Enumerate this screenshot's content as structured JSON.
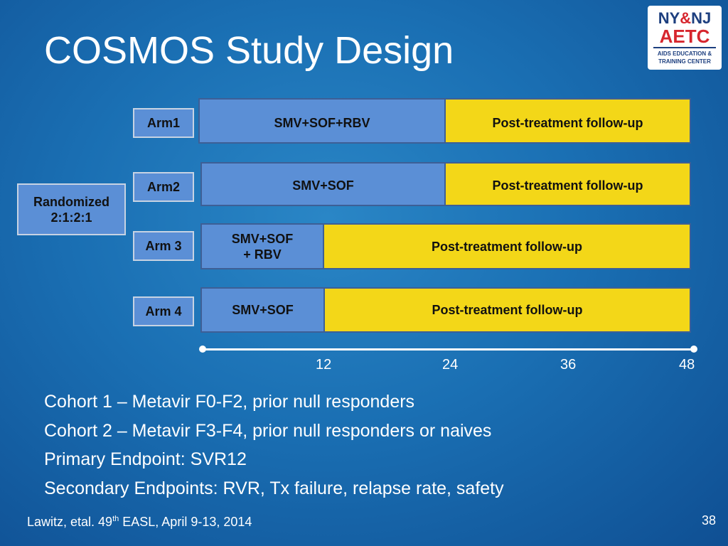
{
  "title": "COSMOS Study Design",
  "logo": {
    "line1_left": "NY",
    "line1_sep": "&",
    "line1_right": "NJ",
    "line2": "AETC",
    "line3": "AIDS EDUCATION &",
    "line4": "TRAINING CENTER"
  },
  "randomized": {
    "line1": "Randomized",
    "line2": "2:1:2:1"
  },
  "arms": [
    {
      "label": "Arm1",
      "treatment": "SMV+SOF+RBV",
      "treatment_weeks": 24,
      "followup": "Post-treatment follow-up"
    },
    {
      "label": "Arm2",
      "treatment": "SMV+SOF",
      "treatment_weeks": 24,
      "followup": "Post-treatment follow-up"
    },
    {
      "label": "Arm 3",
      "treatment_line1": "SMV+SOF",
      "treatment_line2": "+ RBV",
      "treatment_weeks": 12,
      "followup": "Post-treatment follow-up"
    },
    {
      "label": "Arm 4",
      "treatment": "SMV+SOF",
      "treatment_weeks": 12,
      "followup": "Post-treatment follow-up"
    }
  ],
  "axis": {
    "ticks": [
      "12",
      "24",
      "36",
      "48"
    ],
    "min": 0,
    "max": 48
  },
  "bullets": [
    "Cohort 1 – Metavir F0-F2, prior null responders",
    "Cohort 2 – Metavir F3-F4, prior null responders or naives",
    "Primary Endpoint: SVR12",
    "Secondary Endpoints: RVR, Tx failure, relapse rate, safety"
  ],
  "footer": {
    "text_before": "Lawitz, etal. 49",
    "sup": "th",
    "text_after": " EASL, April 9-13, 2014"
  },
  "page_number": "38",
  "colors": {
    "treatment": "#5b8fd6",
    "followup": "#f3d718",
    "background": "#1a6fb3"
  }
}
